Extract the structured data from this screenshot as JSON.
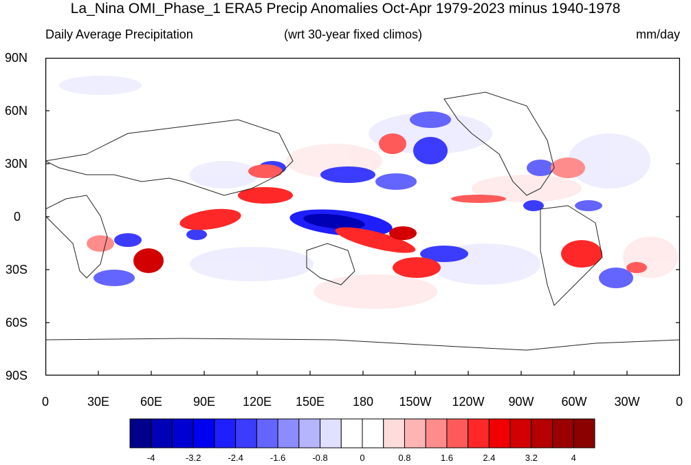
{
  "title": "La_Nina OMI_Phase_1 ERA5 Precip Anomalies Oct-Apr 1979-2023 minus 1940-1978",
  "subtitle_left": "Daily Average Precipitation",
  "subtitle_center": "(wrt 30-year fixed climos)",
  "subtitle_right": "mm/day",
  "lat_ticks": [
    "90N",
    "60N",
    "30N",
    "0",
    "30S",
    "60S",
    "90S"
  ],
  "lon_ticks": [
    "0",
    "30E",
    "60E",
    "90E",
    "120E",
    "150E",
    "180",
    "150W",
    "120W",
    "90W",
    "60W",
    "30W",
    "0"
  ],
  "colorbar": {
    "colors": [
      "#00008b",
      "#0000b4",
      "#0000d2",
      "#0000f0",
      "#1e1eff",
      "#3c3cff",
      "#6464ff",
      "#8c8cff",
      "#b4b4ff",
      "#e0e0ff",
      "#ffffff",
      "#ffffff",
      "#ffdcdc",
      "#ffb4b4",
      "#ff8c8c",
      "#ff5a5a",
      "#ff2828",
      "#f00000",
      "#d20000",
      "#b40000",
      "#9b0000",
      "#8b0000"
    ],
    "labels": [
      "-4",
      "-3.2",
      "-2.4",
      "-1.6",
      "-0.8",
      "0",
      "0.8",
      "1.6",
      "2.4",
      "3.2",
      "4"
    ]
  },
  "palette": {
    "negative": "#0000d2",
    "negative_light": "#b4b4ff",
    "positive": "#f00000",
    "positive_light": "#ffb4b4"
  }
}
